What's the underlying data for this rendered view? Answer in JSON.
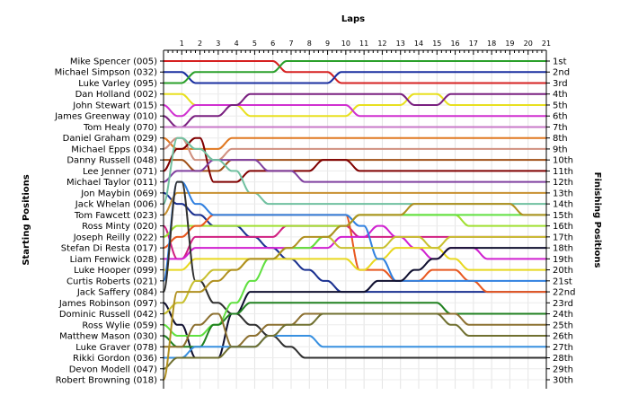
{
  "chart_data": {
    "type": "line",
    "title": "",
    "xlabel": "Laps",
    "ylabel_left": "Starting Positions",
    "ylabel_right": "Finishing Positions",
    "laps": [
      "1",
      "2",
      "3",
      "4",
      "5",
      "6",
      "7",
      "8",
      "9",
      "10",
      "11",
      "12",
      "13",
      "14",
      "15",
      "16",
      "17",
      "18",
      "19",
      "20",
      "21"
    ],
    "start_labels": [
      "Mike Spencer (005)",
      "Michael Simpson (032)",
      "Luke Varley (095)",
      "Dan Holland (002)",
      "John Stewart (015)",
      "James Greenway (010)",
      "Tom Healy (070)",
      "Daniel Graham (029)",
      "Michael Epps (034)",
      "Danny Russell (048)",
      "Lee Jenner (071)",
      "Michael Taylor (011)",
      "Jon Maybin (069)",
      "Jack Whelan (006)",
      "Tom Fawcett (023)",
      "Ross Minty (020)",
      "Joseph Reilly (022)",
      "Stefan Di Resta (017)",
      "Liam Fenwick (028)",
      "Luke Hooper (099)",
      "Curtis Roberts (021)",
      "Jack Saffery (084)",
      "James Robinson (097)",
      "Dominic Russell (042)",
      "Ross Wylie (059)",
      "Matthew Mason (030)",
      "Luke Graver (078)",
      "Rikki Gordon (036)",
      "Devon Modell (047)",
      "Robert Browning (018)"
    ],
    "finish_labels": [
      "1st",
      "2nd",
      "3rd",
      "4th",
      "5th",
      "6th",
      "7th",
      "8th",
      "9th",
      "10th",
      "11th",
      "12th",
      "13th",
      "14th",
      "15th",
      "16th",
      "17th",
      "18th",
      "19th",
      "20th",
      "21st",
      "22nd",
      "23rd",
      "24th",
      "25th",
      "26th",
      "27th",
      "28th",
      "29th",
      "30th"
    ],
    "series": [
      {
        "color": "#d62020",
        "positions": [
          1,
          1,
          1,
          1,
          1,
          1,
          1,
          2,
          2,
          2,
          3,
          3,
          3,
          3,
          3,
          3,
          3,
          3,
          3,
          3,
          3,
          3
        ]
      },
      {
        "color": "#1a2fa0",
        "positions": [
          2,
          2,
          3,
          3,
          3,
          3,
          3,
          3,
          3,
          3,
          2,
          2,
          2,
          2,
          2,
          2,
          2,
          2,
          2,
          2,
          2,
          2
        ]
      },
      {
        "color": "#2aa02a",
        "positions": [
          3,
          3,
          2,
          2,
          2,
          2,
          2,
          1,
          1,
          1,
          1,
          1,
          1,
          1,
          1,
          1,
          1,
          1,
          1,
          1,
          1,
          1
        ]
      },
      {
        "color": "#e8e020",
        "positions": [
          4,
          4,
          5,
          5,
          5,
          6,
          6,
          6,
          6,
          6,
          6,
          5,
          5,
          5,
          4,
          4,
          5,
          5,
          5,
          5,
          5,
          5
        ]
      },
      {
        "color": "#d030d0",
        "positions": [
          5,
          6,
          5,
          5,
          5,
          5,
          5,
          5,
          5,
          5,
          5,
          6,
          6,
          6,
          6,
          6,
          6,
          6,
          6,
          6,
          6,
          6
        ]
      },
      {
        "color": "#7a2080",
        "positions": [
          6,
          7,
          6,
          6,
          5,
          4,
          4,
          4,
          4,
          4,
          4,
          4,
          4,
          4,
          5,
          5,
          4,
          4,
          4,
          4,
          4,
          4
        ]
      },
      {
        "color": "#c878c8",
        "positions": [
          7,
          7,
          7,
          7,
          7,
          7,
          7,
          7,
          7,
          7,
          7,
          7,
          7,
          7,
          7,
          7,
          7,
          7,
          7,
          7,
          7,
          7
        ]
      },
      {
        "color": "#e07820",
        "positions": [
          8,
          9,
          9,
          9,
          8,
          8,
          8,
          8,
          8,
          8,
          8,
          8,
          8,
          8,
          8,
          8,
          8,
          8,
          8,
          8,
          8,
          8
        ]
      },
      {
        "color": "#d09080",
        "positions": [
          9,
          8,
          10,
          10,
          9,
          9,
          9,
          9,
          9,
          9,
          9,
          9,
          9,
          9,
          9,
          9,
          9,
          9,
          9,
          9,
          9,
          9
        ]
      },
      {
        "color": "#a05018",
        "positions": [
          10,
          10,
          11,
          11,
          10,
          10,
          10,
          10,
          10,
          10,
          10,
          10,
          10,
          10,
          10,
          10,
          10,
          10,
          10,
          10,
          10,
          10
        ]
      },
      {
        "color": "#800000",
        "positions": [
          11,
          9,
          8,
          12,
          12,
          11,
          11,
          11,
          11,
          10,
          10,
          11,
          11,
          11,
          11,
          11,
          11,
          11,
          11,
          11,
          11,
          11
        ]
      },
      {
        "color": "#8040a0",
        "positions": [
          12,
          11,
          11,
          10,
          10,
          10,
          11,
          11,
          12,
          12,
          12,
          12,
          12,
          12,
          12,
          12,
          12,
          12,
          12,
          12,
          12,
          12
        ]
      },
      {
        "color": "#1a3090",
        "positions": [
          13,
          14,
          15,
          16,
          16,
          17,
          18,
          19,
          20,
          21,
          22,
          22,
          22,
          22,
          22,
          22,
          22,
          22,
          22,
          22,
          22,
          22
        ]
      },
      {
        "color": "#70c0a0",
        "positions": [
          14,
          8,
          9,
          10,
          11,
          13,
          14,
          14,
          14,
          14,
          14,
          14,
          14,
          14,
          14,
          14,
          14,
          14,
          14,
          14,
          14,
          14
        ]
      },
      {
        "color": "#c89030",
        "positions": [
          15,
          13,
          13,
          13,
          13,
          13,
          13,
          13,
          13,
          13,
          13,
          13,
          13,
          13,
          13,
          13,
          13,
          13,
          13,
          13,
          13,
          13
        ]
      },
      {
        "color": "#d02080",
        "positions": [
          16,
          19,
          17,
          17,
          17,
          17,
          17,
          16,
          16,
          16,
          16,
          17,
          17,
          17,
          17,
          17,
          17,
          17,
          17,
          17,
          17,
          17
        ]
      },
      {
        "color": "#a0e030",
        "positions": [
          17,
          16,
          16,
          16,
          16,
          16,
          16,
          16,
          16,
          16,
          16,
          15,
          15,
          15,
          15,
          15,
          15,
          16,
          16,
          16,
          16,
          16
        ]
      },
      {
        "color": "#e85820",
        "positions": [
          18,
          17,
          16,
          15,
          15,
          15,
          15,
          15,
          15,
          15,
          15,
          20,
          20,
          21,
          21,
          20,
          20,
          21,
          22,
          22,
          22,
          22
        ]
      },
      {
        "color": "#d020d0",
        "positions": [
          19,
          19,
          18,
          18,
          18,
          18,
          18,
          18,
          18,
          18,
          17,
          17,
          16,
          17,
          18,
          19,
          18,
          18,
          19,
          19,
          19,
          19
        ]
      },
      {
        "color": "#e8d820",
        "positions": [
          20,
          20,
          19,
          19,
          19,
          19,
          19,
          19,
          19,
          19,
          19,
          20,
          19,
          18,
          18,
          18,
          19,
          20,
          20,
          20,
          20,
          20
        ]
      },
      {
        "color": "#3080e0",
        "positions": [
          21,
          12,
          14,
          15,
          15,
          15,
          15,
          15,
          15,
          15,
          15,
          16,
          19,
          21,
          21,
          21,
          21,
          21,
          21,
          21,
          21,
          21
        ]
      },
      {
        "color": "#303030",
        "positions": [
          22,
          12,
          21,
          23,
          24,
          25,
          26,
          27,
          28,
          28,
          28,
          28,
          28,
          28,
          28,
          28,
          28,
          28,
          28,
          28,
          28,
          28
        ]
      },
      {
        "color": "#101030",
        "positions": [
          23,
          25,
          28,
          28,
          24,
          22,
          22,
          22,
          22,
          22,
          22,
          22,
          21,
          21,
          20,
          19,
          18,
          18,
          18,
          18,
          18,
          18
        ]
      },
      {
        "color": "#c8c030",
        "positions": [
          24,
          23,
          21,
          20,
          20,
          19,
          19,
          18,
          18,
          17,
          18,
          18,
          18,
          17,
          17,
          18,
          17,
          17,
          17,
          17,
          17,
          17
        ]
      },
      {
        "color": "#60e040",
        "positions": [
          25,
          26,
          26,
          25,
          23,
          21,
          19,
          18,
          18,
          17,
          16,
          15,
          15,
          15,
          15,
          15,
          15,
          15,
          15,
          15,
          15,
          15
        ]
      },
      {
        "color": "#208020",
        "positions": [
          26,
          27,
          27,
          25,
          24,
          23,
          23,
          23,
          23,
          23,
          23,
          23,
          23,
          23,
          23,
          23,
          24,
          24,
          24,
          24,
          24,
          24
        ]
      },
      {
        "color": "#8c7030",
        "positions": [
          27,
          27,
          25,
          24,
          27,
          26,
          25,
          25,
          24,
          24,
          24,
          24,
          24,
          24,
          24,
          24,
          24,
          25,
          25,
          25,
          25,
          25
        ]
      },
      {
        "color": "#3890e0",
        "positions": [
          28,
          28,
          27,
          27,
          27,
          27,
          26,
          26,
          26,
          27,
          27,
          27,
          27,
          27,
          27,
          27,
          27,
          27,
          27,
          27,
          27,
          27
        ]
      },
      {
        "color": "#707030",
        "positions": [
          29,
          28,
          28,
          28,
          27,
          27,
          26,
          25,
          25,
          24,
          24,
          24,
          24,
          24,
          24,
          24,
          25,
          26,
          26,
          26,
          26,
          26
        ]
      },
      {
        "color": "#b09020",
        "positions": [
          30,
          22,
          22,
          21,
          20,
          19,
          19,
          18,
          17,
          17,
          16,
          15,
          15,
          15,
          14,
          14,
          14,
          14,
          14,
          14,
          15,
          15
        ]
      }
    ],
    "grid": true,
    "legend": "none"
  }
}
